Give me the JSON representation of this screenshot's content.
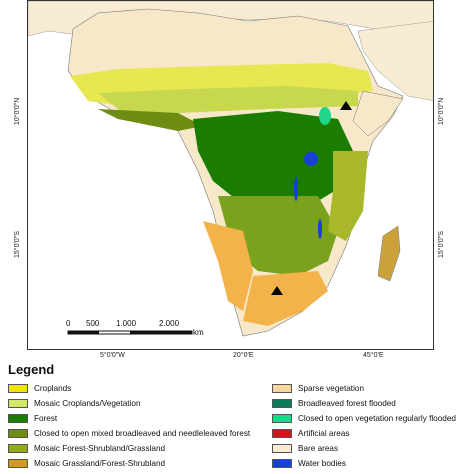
{
  "map": {
    "lat_labels": [
      "10°0'0\"N",
      "15°0'0\"S"
    ],
    "lon_labels": [
      "5°0'0\"W",
      "20°0'E",
      "45°0'E"
    ],
    "scalebar": {
      "ticks": [
        "0",
        "500",
        "1.000",
        "2.000"
      ],
      "unit": "km"
    }
  },
  "legend": {
    "title": "Legend",
    "left_items": [
      {
        "label": "Croplands",
        "color": "#f0e400"
      },
      {
        "label": "Mosaic Croplands/Vegetation",
        "color": "#d4e86a"
      },
      {
        "label": "Forest",
        "color": "#1a7d00"
      },
      {
        "label": "Closed to open mixed broadleaved and needleleaved forest",
        "color": "#6f8c12"
      },
      {
        "label": "Mosaic Forest-Shrubland/Grassland",
        "color": "#96a81e"
      },
      {
        "label": "Mosaic Grassland/Forest-Shrubland",
        "color": "#d09c1e"
      }
    ],
    "right_items": [
      {
        "label": "Sparse vegetation",
        "color": "#f8d79c"
      },
      {
        "label": "Broadleaved forest flooded",
        "color": "#0a7a5a"
      },
      {
        "label": "Closed to open vegetation regularly flooded",
        "color": "#1ed68a"
      },
      {
        "label": "Artificial areas",
        "color": "#c81a1a"
      },
      {
        "label": "Bare areas",
        "color": "#f8ead0"
      },
      {
        "label": "Water bodies",
        "color": "#1740d8"
      }
    ]
  }
}
